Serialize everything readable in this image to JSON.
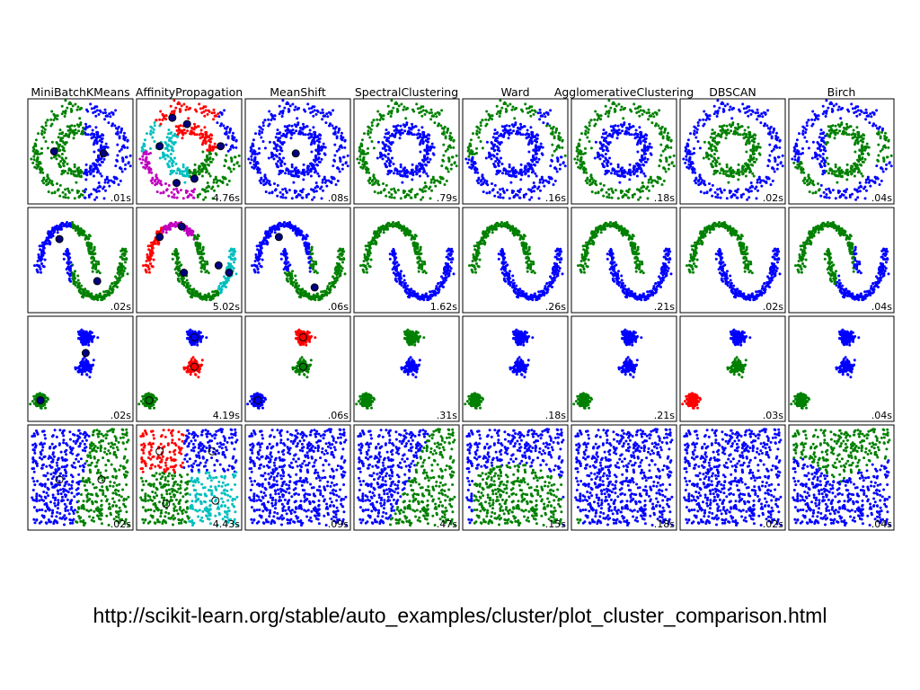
{
  "chart_data": {
    "type": "scatter",
    "algorithms": [
      "MiniBatchKMeans",
      "AffinityPropagation",
      "MeanShift",
      "SpectralClustering",
      "Ward",
      "AgglomerativeClustering",
      "DBSCAN",
      "Birch"
    ],
    "datasets": [
      "circles",
      "moons",
      "blobs",
      "uniform"
    ],
    "timings": [
      [
        ".01s",
        "4.76s",
        ".08s",
        ".79s",
        ".16s",
        ".18s",
        ".02s",
        ".04s"
      ],
      [
        ".02s",
        "5.02s",
        ".06s",
        "1.62s",
        ".26s",
        ".21s",
        ".02s",
        ".04s"
      ],
      [
        ".02s",
        "4.19s",
        ".06s",
        ".31s",
        ".18s",
        ".21s",
        ".03s",
        ".04s"
      ],
      [
        ".02s",
        "4.43s",
        ".09s",
        ".47s",
        ".15s",
        ".18s",
        ".02s",
        ".04s"
      ]
    ],
    "colors": {
      "blue": "#0000ff",
      "green": "#008000",
      "red": "#ff0000",
      "cyan": "#00bfbf",
      "magenta": "#bf00bf",
      "black": "#000000"
    },
    "grid": false,
    "axes_ticks": false
  },
  "footer": {
    "url": "http://scikit-learn.org/stable/auto_examples/cluster/plot_cluster_comparison.html"
  }
}
